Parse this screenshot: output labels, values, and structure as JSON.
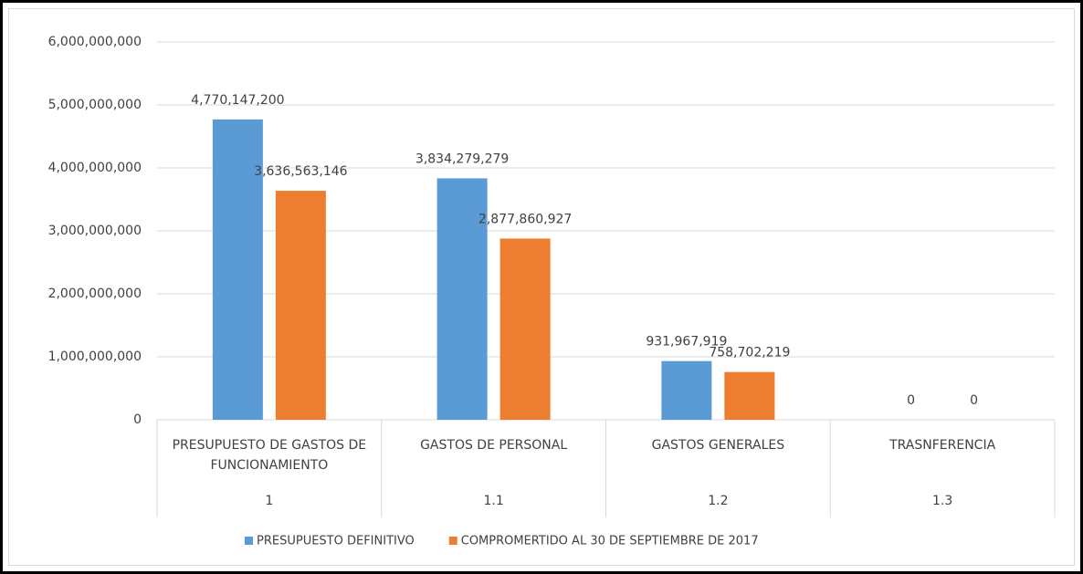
{
  "chart_data": {
    "type": "bar",
    "categories": [
      "PRESUPUESTO DE GASTOS DE FUNCIONAMIENTO",
      "GASTOS DE PERSONAL",
      "GASTOS GENERALES",
      "TRASNFERENCIA"
    ],
    "category_codes": [
      "1",
      "1.1",
      "1.2",
      "1.3"
    ],
    "series": [
      {
        "name": "PRESUPUESTO DEFINITIVO",
        "color": "#5b9bd5",
        "values": [
          4770147200,
          3834279279,
          931967919,
          0
        ],
        "value_labels": [
          "4,770,147,200",
          "3,834,279,279",
          "931,967,919",
          "0"
        ]
      },
      {
        "name": "COMPROMERTIDO AL 30 DE SEPTIEMBRE DE 2017",
        "color": "#ed7d31",
        "values": [
          3636563146,
          2877860927,
          758702219,
          0
        ],
        "value_labels": [
          "3,636,563,146",
          "2,877,860,927",
          "758,702,219",
          "0"
        ]
      }
    ],
    "ylim": [
      0,
      6000000000
    ],
    "yticks": [
      0,
      {
        "value": 1000000000,
        "label": "1,000,000,000"
      },
      {
        "value": 2000000000,
        "label": "2,000,000,000"
      },
      {
        "value": 3000000000,
        "label": "3,000,000,000"
      },
      {
        "value": 4000000000,
        "label": "4,000,000,000"
      },
      {
        "value": 5000000000,
        "label": "5,000,000,000"
      },
      {
        "value": 6000000000,
        "label": "6,000,000,000"
      }
    ],
    "grid": true
  }
}
